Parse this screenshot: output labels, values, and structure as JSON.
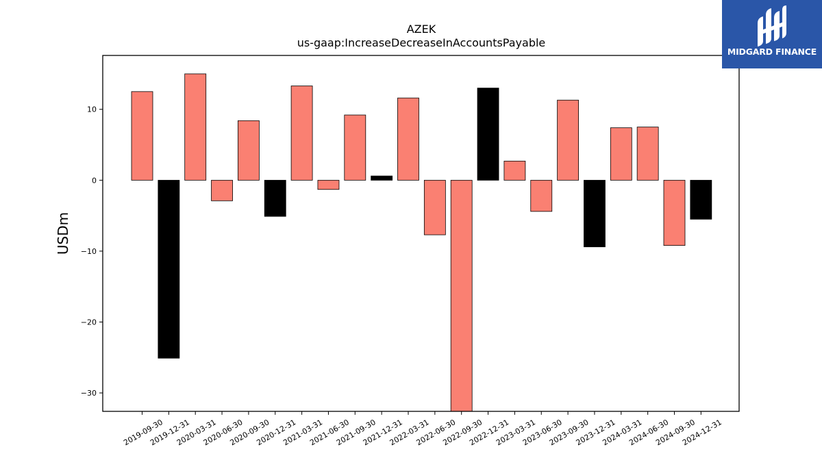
{
  "chart_data": {
    "type": "bar",
    "title": "AZEK",
    "subtitle": "us-gaap:IncreaseDecreaseInAccountsPayable",
    "xlabel": "",
    "ylabel": "USDm",
    "ylim": [
      -32.6,
      17.6
    ],
    "yticks": [
      -30,
      -20,
      -10,
      0,
      10
    ],
    "ytick_labels": [
      "−30",
      "−20",
      "−10",
      "0",
      "10"
    ],
    "grid": false,
    "categories": [
      "2019-09-30",
      "2019-12-31",
      "2020-03-31",
      "2020-06-30",
      "2020-09-30",
      "2020-12-31",
      "2021-03-31",
      "2021-06-30",
      "2021-09-30",
      "2021-12-31",
      "2022-03-31",
      "2022-06-30",
      "2022-09-30",
      "2022-12-31",
      "2023-03-31",
      "2023-06-30",
      "2023-09-30",
      "2023-12-31",
      "2024-03-31",
      "2024-06-30",
      "2024-09-30",
      "2024-12-31"
    ],
    "values": [
      12.5,
      -25.1,
      15.0,
      -2.9,
      8.4,
      -5.1,
      13.3,
      -1.3,
      9.2,
      0.6,
      11.6,
      -7.7,
      -33.0,
      13.0,
      2.7,
      -4.4,
      11.3,
      -9.4,
      7.4,
      7.5,
      -9.2,
      -5.5
    ],
    "colors": [
      "#fa8072",
      "#000000",
      "#fa8072",
      "#fa8072",
      "#fa8072",
      "#000000",
      "#fa8072",
      "#fa8072",
      "#fa8072",
      "#000000",
      "#fa8072",
      "#fa8072",
      "#fa8072",
      "#000000",
      "#fa8072",
      "#fa8072",
      "#fa8072",
      "#000000",
      "#fa8072",
      "#fa8072",
      "#fa8072",
      "#000000"
    ]
  },
  "logo": {
    "text": "MIDGARD FINANCE",
    "background": "#2a56a8"
  }
}
